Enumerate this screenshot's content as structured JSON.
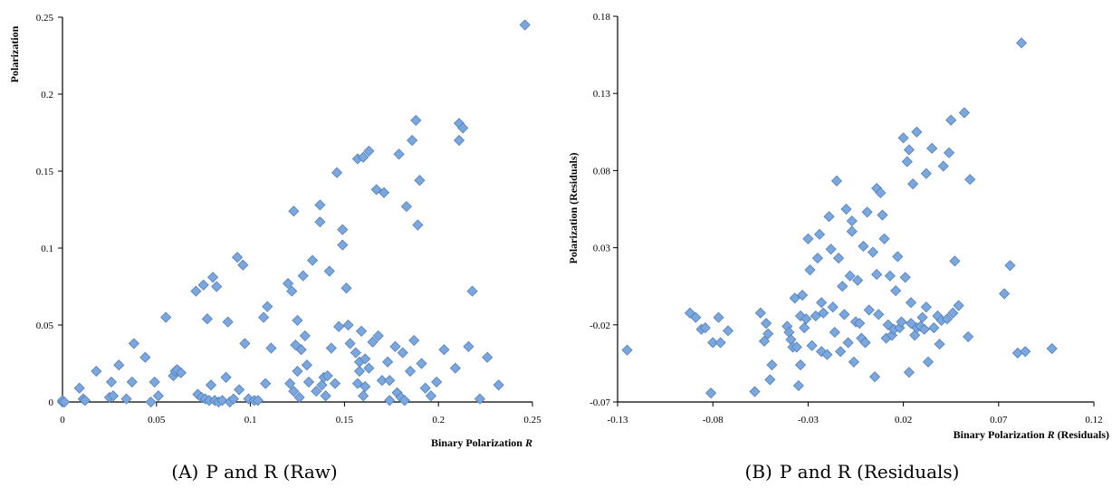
{
  "colors": {
    "marker_fill": "#7ba7dc",
    "marker_stroke": "#4f7fbf",
    "axis": "#000000"
  },
  "chart_data": [
    {
      "type": "scatter",
      "xlabel_prefix": "Binary Polarization ",
      "xlabel_var": "R",
      "xlabel_suffix": "",
      "ylabel": "Polarization",
      "caption_label": "(A)",
      "caption_text": "P and R (Raw)",
      "xlim": [
        0,
        0.25
      ],
      "ylim": [
        0,
        0.25
      ],
      "xticks": [
        "0",
        "0.05",
        "0.1",
        "0.15",
        "0.2",
        "0.25"
      ],
      "yticks": [
        "0",
        "0.05",
        "0.1",
        "0.15",
        "0.2",
        "0.25"
      ],
      "grid": false,
      "points": [
        [
          0,
          0
        ],
        [
          0,
          0.001
        ],
        [
          0.001,
          0
        ],
        [
          0.009,
          0.009
        ],
        [
          0.011,
          0.002
        ],
        [
          0.012,
          0.001
        ],
        [
          0.018,
          0.02
        ],
        [
          0.025,
          0.003
        ],
        [
          0.026,
          0.013
        ],
        [
          0.027,
          0.004
        ],
        [
          0.03,
          0.024
        ],
        [
          0.034,
          0.002
        ],
        [
          0.037,
          0.013
        ],
        [
          0.038,
          0.038
        ],
        [
          0.044,
          0.029
        ],
        [
          0.047,
          0
        ],
        [
          0.049,
          0.013
        ],
        [
          0.051,
          0.004
        ],
        [
          0.055,
          0.055
        ],
        [
          0.059,
          0.017
        ],
        [
          0.06,
          0.02
        ],
        [
          0.061,
          0.021
        ],
        [
          0.063,
          0.019
        ],
        [
          0.071,
          0.072
        ],
        [
          0.072,
          0.005
        ],
        [
          0.074,
          0.003
        ],
        [
          0.075,
          0.076
        ],
        [
          0.076,
          0.002
        ],
        [
          0.077,
          0.054
        ],
        [
          0.078,
          0.001
        ],
        [
          0.079,
          0.011
        ],
        [
          0.08,
          0.081
        ],
        [
          0.081,
          0.001
        ],
        [
          0.082,
          0.075
        ],
        [
          0.083,
          0
        ],
        [
          0.085,
          0.001
        ],
        [
          0.087,
          0.016
        ],
        [
          0.088,
          0.052
        ],
        [
          0.089,
          0
        ],
        [
          0.091,
          0.002
        ],
        [
          0.093,
          0.094
        ],
        [
          0.094,
          0.008
        ],
        [
          0.096,
          0.089
        ],
        [
          0.097,
          0.038
        ],
        [
          0.099,
          0.002
        ],
        [
          0.102,
          0.001
        ],
        [
          0.104,
          0.001
        ],
        [
          0.107,
          0.055
        ],
        [
          0.108,
          0.012
        ],
        [
          0.109,
          0.062
        ],
        [
          0.111,
          0.035
        ],
        [
          0.12,
          0.077
        ],
        [
          0.121,
          0.012
        ],
        [
          0.122,
          0.072
        ],
        [
          0.123,
          0.124
        ],
        [
          0.123,
          0.007
        ],
        [
          0.124,
          0.037
        ],
        [
          0.125,
          0.02
        ],
        [
          0.125,
          0.053
        ],
        [
          0.126,
          0.003
        ],
        [
          0.127,
          0.034
        ],
        [
          0.128,
          0.082
        ],
        [
          0.129,
          0.043
        ],
        [
          0.13,
          0.024
        ],
        [
          0.131,
          0.013
        ],
        [
          0.133,
          0.092
        ],
        [
          0.135,
          0.007
        ],
        [
          0.137,
          0.117
        ],
        [
          0.137,
          0.128
        ],
        [
          0.138,
          0.011
        ],
        [
          0.139,
          0.016
        ],
        [
          0.14,
          0.004
        ],
        [
          0.141,
          0.017
        ],
        [
          0.142,
          0.085
        ],
        [
          0.143,
          0.035
        ],
        [
          0.145,
          0.012
        ],
        [
          0.146,
          0.149
        ],
        [
          0.147,
          0.049
        ],
        [
          0.149,
          0.102
        ],
        [
          0.149,
          0.112
        ],
        [
          0.151,
          0.074
        ],
        [
          0.152,
          0.05
        ],
        [
          0.153,
          0.038
        ],
        [
          0.156,
          0.032
        ],
        [
          0.157,
          0.158
        ],
        [
          0.157,
          0.012
        ],
        [
          0.158,
          0.026
        ],
        [
          0.158,
          0.02
        ],
        [
          0.159,
          0.046
        ],
        [
          0.16,
          0.004
        ],
        [
          0.16,
          0.159
        ],
        [
          0.161,
          0.028
        ],
        [
          0.161,
          0.01
        ],
        [
          0.163,
          0.163
        ],
        [
          0.163,
          0.022
        ],
        [
          0.165,
          0.039
        ],
        [
          0.167,
          0.138
        ],
        [
          0.168,
          0.043
        ],
        [
          0.17,
          0.014
        ],
        [
          0.171,
          0.136
        ],
        [
          0.173,
          0.026
        ],
        [
          0.174,
          0.014
        ],
        [
          0.174,
          0.001
        ],
        [
          0.177,
          0.036
        ],
        [
          0.178,
          0.006
        ],
        [
          0.179,
          0.161
        ],
        [
          0.18,
          0.003
        ],
        [
          0.181,
          0.032
        ],
        [
          0.182,
          0.001
        ],
        [
          0.183,
          0.127
        ],
        [
          0.185,
          0.02
        ],
        [
          0.186,
          0.17
        ],
        [
          0.187,
          0.04
        ],
        [
          0.188,
          0.183
        ],
        [
          0.189,
          0.115
        ],
        [
          0.19,
          0.144
        ],
        [
          0.191,
          0.025
        ],
        [
          0.193,
          0.009
        ],
        [
          0.196,
          0.004
        ],
        [
          0.199,
          0.013
        ],
        [
          0.203,
          0.034
        ],
        [
          0.209,
          0.022
        ],
        [
          0.211,
          0.181
        ],
        [
          0.211,
          0.17
        ],
        [
          0.213,
          0.178
        ],
        [
          0.216,
          0.036
        ],
        [
          0.218,
          0.072
        ],
        [
          0.222,
          0.002
        ],
        [
          0.226,
          0.029
        ],
        [
          0.232,
          0.011
        ],
        [
          0.246,
          0.245
        ]
      ]
    },
    {
      "type": "scatter",
      "xlabel_prefix": "Binary Polarization ",
      "xlabel_var": "R",
      "xlabel_suffix": " (Residuals)",
      "ylabel": "Polarization (Residuals)",
      "caption_label": "(B)",
      "caption_text": "P and R (Residuals)",
      "xlim": [
        -0.13,
        0.12
      ],
      "ylim": [
        -0.07,
        0.19
      ],
      "xticks": [
        "-0.13",
        "-0.08",
        "-0.03",
        "0.02",
        "0.07",
        "0.12"
      ],
      "yticks": [
        "-0.07",
        "-0.02",
        "0.03",
        "0.08",
        "0.13",
        "0.18"
      ],
      "grid": false,
      "points": [
        [
          -0.125,
          -0.035
        ],
        [
          -0.092,
          -0.01
        ],
        [
          -0.089,
          -0.013
        ],
        [
          -0.086,
          -0.021
        ],
        [
          -0.084,
          -0.02
        ],
        [
          -0.081,
          -0.064
        ],
        [
          -0.08,
          -0.03
        ],
        [
          -0.077,
          -0.013
        ],
        [
          -0.076,
          -0.03
        ],
        [
          -0.072,
          -0.022
        ],
        [
          -0.058,
          -0.063
        ],
        [
          -0.055,
          -0.01
        ],
        [
          -0.053,
          -0.029
        ],
        [
          -0.052,
          -0.017
        ],
        [
          -0.051,
          -0.024
        ],
        [
          -0.05,
          -0.055
        ],
        [
          -0.049,
          -0.045
        ],
        [
          -0.041,
          -0.019
        ],
        [
          -0.04,
          -0.023
        ],
        [
          -0.039,
          -0.028
        ],
        [
          -0.038,
          -0.033
        ],
        [
          -0.037,
          0.0
        ],
        [
          -0.036,
          -0.033
        ],
        [
          -0.035,
          -0.059
        ],
        [
          -0.034,
          -0.012
        ],
        [
          -0.034,
          -0.045
        ],
        [
          -0.033,
          0.002
        ],
        [
          -0.032,
          -0.02
        ],
        [
          -0.031,
          -0.014
        ],
        [
          -0.03,
          0.04
        ],
        [
          -0.029,
          0.019
        ],
        [
          -0.028,
          -0.032
        ],
        [
          -0.026,
          -0.012
        ],
        [
          -0.025,
          0.027
        ],
        [
          -0.024,
          0.043
        ],
        [
          -0.023,
          -0.003
        ],
        [
          -0.023,
          -0.036
        ],
        [
          -0.022,
          -0.01
        ],
        [
          -0.02,
          -0.038
        ],
        [
          -0.019,
          0.055
        ],
        [
          -0.018,
          0.033
        ],
        [
          -0.017,
          -0.006
        ],
        [
          -0.016,
          -0.023
        ],
        [
          -0.015,
          0.079
        ],
        [
          -0.014,
          0.027
        ],
        [
          -0.013,
          -0.036
        ],
        [
          -0.012,
          0.008
        ],
        [
          -0.011,
          -0.011
        ],
        [
          -0.01,
          0.06
        ],
        [
          -0.009,
          -0.03
        ],
        [
          -0.008,
          0.015
        ],
        [
          -0.007,
          0.052
        ],
        [
          -0.007,
          0.045
        ],
        [
          -0.006,
          -0.043
        ],
        [
          -0.005,
          -0.016
        ],
        [
          -0.004,
          0.012
        ],
        [
          -0.003,
          -0.017
        ],
        [
          -0.002,
          -0.027
        ],
        [
          -0.001,
          0.035
        ],
        [
          0.0,
          -0.03
        ],
        [
          0.001,
          0.058
        ],
        [
          0.002,
          -0.008
        ],
        [
          0.004,
          0.031
        ],
        [
          0.005,
          -0.053
        ],
        [
          0.006,
          0.074
        ],
        [
          0.006,
          0.016
        ],
        [
          0.007,
          -0.011
        ],
        [
          0.008,
          0.071
        ],
        [
          0.009,
          0.056
        ],
        [
          0.01,
          0.04
        ],
        [
          0.011,
          -0.027
        ],
        [
          0.012,
          -0.018
        ],
        [
          0.013,
          0.015
        ],
        [
          0.014,
          -0.025
        ],
        [
          0.015,
          -0.021
        ],
        [
          0.016,
          0.005
        ],
        [
          0.017,
          0.028
        ],
        [
          0.018,
          -0.02
        ],
        [
          0.019,
          -0.016
        ],
        [
          0.02,
          0.108
        ],
        [
          0.021,
          0.014
        ],
        [
          0.022,
          0.092
        ],
        [
          0.023,
          0.1
        ],
        [
          0.023,
          -0.05
        ],
        [
          0.024,
          -0.003
        ],
        [
          0.024,
          -0.017
        ],
        [
          0.025,
          0.077
        ],
        [
          0.026,
          -0.025
        ],
        [
          0.027,
          0.112
        ],
        [
          0.027,
          -0.02
        ],
        [
          0.029,
          -0.019
        ],
        [
          0.03,
          -0.013
        ],
        [
          0.031,
          -0.021
        ],
        [
          0.032,
          0.084
        ],
        [
          0.032,
          -0.006
        ],
        [
          0.033,
          -0.043
        ],
        [
          0.035,
          0.101
        ],
        [
          0.036,
          -0.02
        ],
        [
          0.038,
          -0.012
        ],
        [
          0.039,
          -0.031
        ],
        [
          0.04,
          -0.015
        ],
        [
          0.041,
          0.089
        ],
        [
          0.043,
          -0.014
        ],
        [
          0.044,
          0.098
        ],
        [
          0.045,
          0.12
        ],
        [
          0.046,
          -0.01
        ],
        [
          0.047,
          0.025
        ],
        [
          0.049,
          -0.005
        ],
        [
          0.052,
          0.125
        ],
        [
          0.054,
          -0.026
        ],
        [
          0.055,
          0.08
        ],
        [
          0.073,
          0.003
        ],
        [
          0.076,
          0.022
        ],
        [
          0.08,
          -0.037
        ],
        [
          0.082,
          0.172
        ],
        [
          0.084,
          -0.036
        ],
        [
          0.098,
          -0.034
        ]
      ]
    }
  ]
}
